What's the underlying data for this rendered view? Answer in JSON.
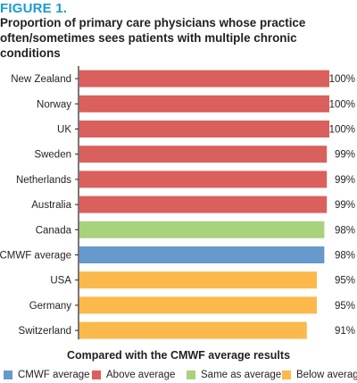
{
  "figure_label": "FIGURE 1.",
  "chart_data": {
    "type": "bar",
    "orientation": "horizontal",
    "title": "Proportion of primary care physicians whose practice often/sometimes sees patients with multiple chronic conditions",
    "categories": [
      "New Zealand",
      "Norway",
      "UK",
      "Sweden",
      "Netherlands",
      "Australia",
      "Canada",
      "CMWF average",
      "USA",
      "Germany",
      "Switzerland"
    ],
    "values": [
      100,
      100,
      100,
      99,
      99,
      99,
      98,
      98,
      95,
      95,
      91
    ],
    "value_labels": [
      "100%",
      "100%",
      "100%",
      "99%",
      "99%",
      "99%",
      "98%",
      "98%",
      "95%",
      "95%",
      "91%"
    ],
    "groups": [
      "above",
      "above",
      "above",
      "above",
      "above",
      "above",
      "same",
      "cmwf",
      "below",
      "below",
      "below"
    ],
    "xlim": [
      0,
      100
    ],
    "grid": false,
    "legend_title": "Compared with the CMWF average results",
    "legend_position": "bottom",
    "legend": [
      {
        "key": "cmwf",
        "label": "CMWF average",
        "color": "#6699cc"
      },
      {
        "key": "above",
        "label": "Above average",
        "color": "#d9605c"
      },
      {
        "key": "same",
        "label": "Same as average",
        "color": "#a8d27b"
      },
      {
        "key": "below",
        "label": "Below average",
        "color": "#fbb94c"
      }
    ]
  }
}
